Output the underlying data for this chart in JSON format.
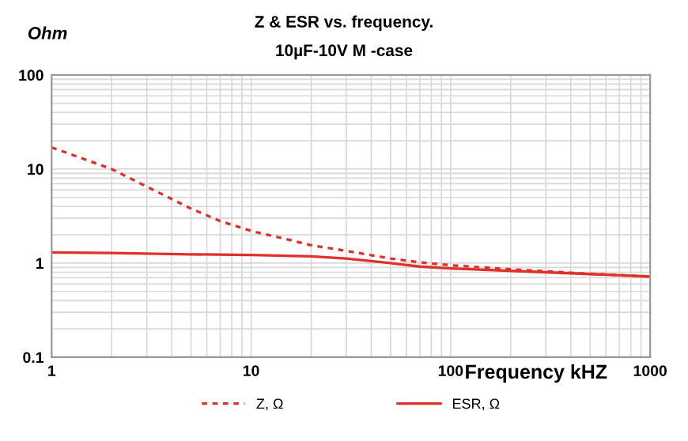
{
  "chart_data": {
    "type": "line",
    "title": "Z & ESR vs. frequency.",
    "subtitle": "10µF-10V M -case",
    "xlabel": "Frequency kHZ",
    "ylabel": "Ohm",
    "log": "xy",
    "grid": true,
    "legend": "bottom",
    "xlim": [
      1,
      1000
    ],
    "xticks": [
      1,
      10,
      100,
      1000
    ],
    "ylim": [
      0.1,
      100
    ],
    "yticks": [
      0.1,
      1,
      10,
      100
    ],
    "series": [
      {
        "name": "Z, Ω",
        "color": "#e0302a",
        "line_style": "dashed",
        "x": [
          1,
          2,
          3,
          5,
          7,
          10,
          15,
          20,
          30,
          50,
          70,
          100,
          200,
          500,
          1000
        ],
        "values": [
          17,
          10,
          6.5,
          3.8,
          2.8,
          2.2,
          1.8,
          1.55,
          1.35,
          1.12,
          1.02,
          0.95,
          0.86,
          0.77,
          0.72
        ]
      },
      {
        "name": "ESR, Ω",
        "color": "#e0302a",
        "line_style": "solid",
        "x": [
          1,
          2,
          5,
          10,
          20,
          30,
          50,
          70,
          100,
          300,
          1000
        ],
        "values": [
          1.3,
          1.28,
          1.24,
          1.22,
          1.18,
          1.12,
          1.0,
          0.92,
          0.88,
          0.8,
          0.72
        ]
      }
    ]
  }
}
